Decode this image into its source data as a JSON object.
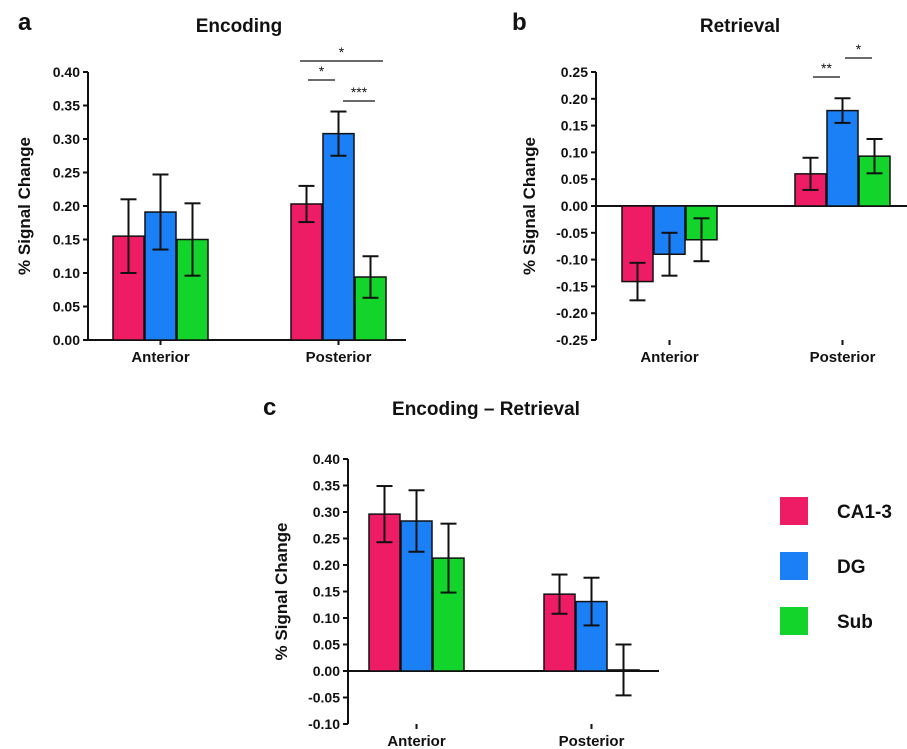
{
  "colors": {
    "CA1-3": "#ee1c64",
    "DG": "#1b7ff5",
    "Sub": "#12d42a"
  },
  "legend": [
    {
      "label": "CA1-3",
      "color": "#ee1c64"
    },
    {
      "label": "DG",
      "color": "#1b7ff5"
    },
    {
      "label": "Sub",
      "color": "#12d42a"
    }
  ],
  "chart_data": [
    {
      "type": "bar",
      "panel_letter": "a",
      "title": "Encoding",
      "ylabel": "% Signal Change",
      "categories": [
        "Anterior",
        "Posterior"
      ],
      "ylim": [
        0,
        0.4
      ],
      "yticks": [
        "0.00",
        "0.05",
        "0.10",
        "0.15",
        "0.20",
        "0.25",
        "0.30",
        "0.35",
        "0.40"
      ],
      "series": [
        {
          "name": "CA1-3",
          "values": [
            0.155,
            0.203
          ],
          "errors": [
            0.055,
            0.027
          ]
        },
        {
          "name": "DG",
          "values": [
            0.191,
            0.308
          ],
          "errors": [
            0.056,
            0.033
          ]
        },
        {
          "name": "Sub",
          "values": [
            0.15,
            0.094
          ],
          "errors": [
            0.054,
            0.031
          ]
        }
      ],
      "significance": [
        {
          "category": "Posterior",
          "from": "CA1-3",
          "to": "Sub",
          "label": "*"
        },
        {
          "category": "Posterior",
          "from": "CA1-3",
          "to": "DG",
          "label": "*"
        },
        {
          "category": "Posterior",
          "from": "DG",
          "to": "Sub",
          "label": "***"
        }
      ]
    },
    {
      "type": "bar",
      "panel_letter": "b",
      "title": "Retrieval",
      "ylabel": "% Signal Change",
      "categories": [
        "Anterior",
        "Posterior"
      ],
      "ylim": [
        -0.25,
        0.25
      ],
      "yticks": [
        "-0.25",
        "-0.20",
        "-0.15",
        "-0.10",
        "-0.05",
        "0.00",
        "0.05",
        "0.10",
        "0.15",
        "0.20",
        "0.25"
      ],
      "series": [
        {
          "name": "CA1-3",
          "values": [
            -0.141,
            0.06
          ],
          "errors": [
            0.035,
            0.03
          ]
        },
        {
          "name": "DG",
          "values": [
            -0.09,
            0.178
          ],
          "errors": [
            0.04,
            0.023
          ]
        },
        {
          "name": "Sub",
          "values": [
            -0.063,
            0.093
          ],
          "errors": [
            0.04,
            0.032
          ]
        }
      ],
      "significance": [
        {
          "category": "Posterior",
          "from": "CA1-3",
          "to": "DG",
          "label": "**"
        },
        {
          "category": "Posterior",
          "from": "DG",
          "to": "Sub",
          "label": "*"
        }
      ]
    },
    {
      "type": "bar",
      "panel_letter": "c",
      "title": "Encoding – Retrieval",
      "ylabel": "% Signal Change",
      "categories": [
        "Anterior",
        "Posterior"
      ],
      "ylim": [
        -0.1,
        0.4
      ],
      "yticks": [
        "-0.10",
        "-0.05",
        "0.00",
        "0.05",
        "0.10",
        "0.15",
        "0.20",
        "0.25",
        "0.30",
        "0.35",
        "0.40"
      ],
      "series": [
        {
          "name": "CA1-3",
          "values": [
            0.296,
            0.145
          ],
          "errors": [
            0.053,
            0.037
          ]
        },
        {
          "name": "DG",
          "values": [
            0.283,
            0.131
          ],
          "errors": [
            0.058,
            0.045
          ]
        },
        {
          "name": "Sub",
          "values": [
            0.213,
            0.002
          ],
          "errors": [
            0.065,
            0.048
          ]
        }
      ],
      "significance": []
    }
  ]
}
